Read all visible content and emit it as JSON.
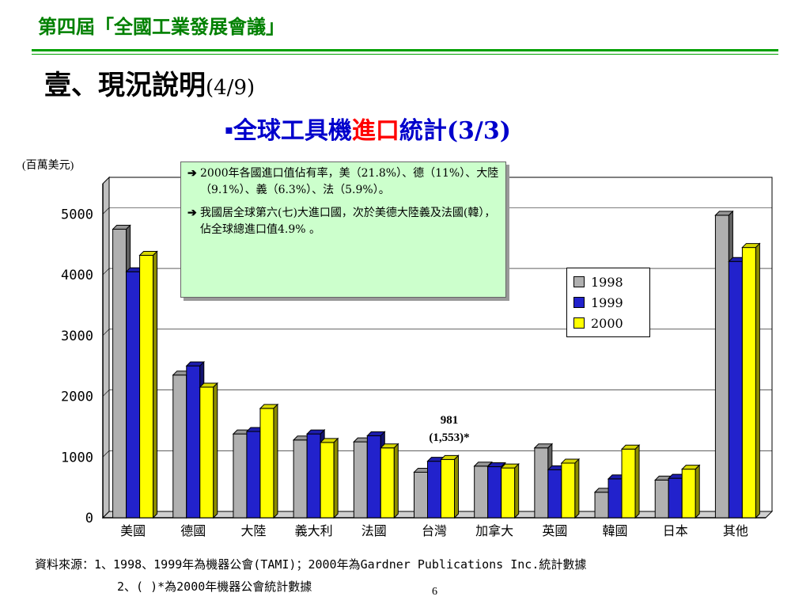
{
  "header": {
    "title": "第四屆「全國工業發展會議」"
  },
  "section": {
    "title": "壹、現況說明",
    "page_marker": "(4/9)"
  },
  "slide": {
    "bullet": "▪",
    "subtitle_part1": "全球工具機",
    "subtitle_highlight": "進口",
    "subtitle_part2": "統計(3/3)"
  },
  "chart_data": {
    "type": "bar",
    "unit_label": "(百萬美元)",
    "categories": [
      "美國",
      "德國",
      "大陸",
      "義大利",
      "法國",
      "台灣",
      "加拿大",
      "英國",
      "韓國",
      "日本",
      "其他"
    ],
    "series": [
      {
        "name": "1998",
        "color": "#b0b0b0",
        "values": [
          4750,
          2350,
          1380,
          1280,
          1250,
          750,
          850,
          1150,
          420,
          620,
          4980
        ]
      },
      {
        "name": "1999",
        "color": "#2222cc",
        "values": [
          4050,
          2500,
          1420,
          1380,
          1350,
          930,
          840,
          790,
          640,
          650,
          4220
        ]
      },
      {
        "name": "2000",
        "color": "#ffff00",
        "values": [
          4320,
          2150,
          1800,
          1240,
          1150,
          960,
          820,
          900,
          1130,
          800,
          4450
        ]
      }
    ],
    "y_ticks": [
      "0",
      "1000",
      "2000",
      "3000",
      "4000",
      "5000"
    ],
    "ylim": [
      0,
      5500
    ],
    "grid": true,
    "legend_position": "right",
    "annotation": {
      "line1": "981",
      "line2": "(1,553)*"
    }
  },
  "notes": [
    {
      "arrow": "➔",
      "text": "2000年各國進口值佔有率，美（21.8%）、德（11%）、大陸（9.1%）、義（6.3%）、法（5.9%）。"
    },
    {
      "arrow": "➔",
      "text": "我國居全球第六(七)大進口國，次於美德大陸義及法國(韓），佔全球總進口值4.9% 。"
    }
  ],
  "footer": {
    "source_line1": "資料來源：1、1998、1999年為機器公會(TAMI)；2000年為Gardner Publications Inc.統計數據",
    "source_line2": "2、( )*為2000年機器公會統計數據",
    "page_number": "6"
  }
}
